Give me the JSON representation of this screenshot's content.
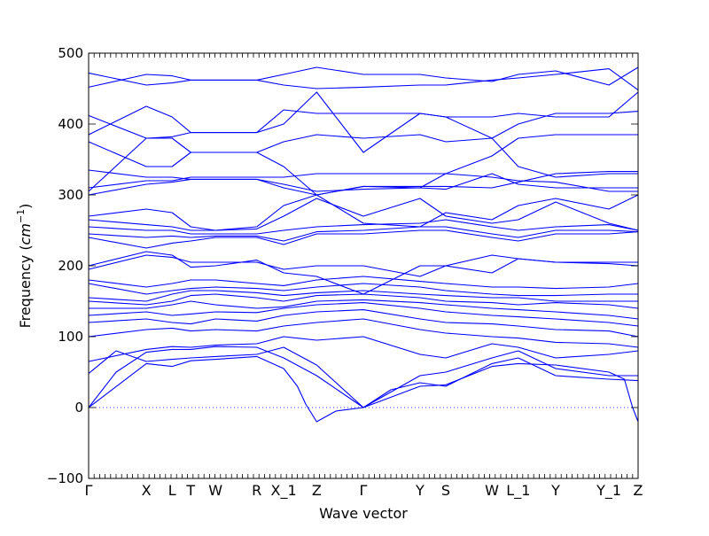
{
  "chart_data": {
    "type": "line",
    "title": "",
    "xlabel": "Wave vector",
    "ylabel": "Frequency (cm⁻¹)",
    "ylabel_prefix": "Frequency (",
    "ylabel_unit": "cm",
    "ylabel_exp": "−1",
    "ylabel_suffix": ")",
    "ylim": [
      -100,
      500
    ],
    "y_ticks": [
      -100,
      0,
      100,
      200,
      300,
      400,
      500
    ],
    "xlim": [
      0,
      1
    ],
    "x_tick_labels": [
      "Γ",
      "X",
      "L",
      "T",
      "W",
      "R",
      "X_1",
      "Z",
      "Γ",
      "Y",
      "S",
      "W",
      "L_1",
      "Y",
      "Y_1",
      "Z"
    ],
    "x_tick_positions": [
      0.0,
      0.105,
      0.152,
      0.186,
      0.231,
      0.306,
      0.355,
      0.415,
      0.5,
      0.603,
      0.65,
      0.734,
      0.782,
      0.85,
      0.947,
      1.0
    ],
    "zero_line": 0,
    "grid": false,
    "line_color": "#0000ff",
    "series": [
      {
        "x": [
          0.0,
          0.105,
          0.152,
          0.186,
          0.231,
          0.306,
          0.355,
          0.38,
          0.395,
          0.415,
          0.45,
          0.5,
          0.603,
          0.65,
          0.734,
          0.782,
          0.85,
          0.947,
          0.975,
          0.99,
          1.0
        ],
        "y": [
          0,
          62,
          58,
          66,
          68,
          72,
          55,
          30,
          5,
          -20,
          -5,
          0,
          30,
          32,
          58,
          62,
          60,
          50,
          40,
          0,
          -20
        ]
      },
      {
        "x": [
          0.0,
          0.05,
          0.105,
          0.152,
          0.186,
          0.231,
          0.306,
          0.355,
          0.415,
          0.5,
          0.55,
          0.603,
          0.65,
          0.734,
          0.782,
          0.85,
          0.947,
          1.0
        ],
        "y": [
          0,
          50,
          78,
          82,
          82,
          86,
          85,
          70,
          45,
          0,
          25,
          35,
          30,
          62,
          70,
          45,
          40,
          38
        ]
      },
      {
        "x": [
          0.0,
          0.05,
          0.105,
          0.152,
          0.186,
          0.231,
          0.306,
          0.355,
          0.415,
          0.5,
          0.603,
          0.65,
          0.734,
          0.782,
          0.85,
          0.947,
          1.0
        ],
        "y": [
          48,
          80,
          65,
          68,
          70,
          72,
          75,
          85,
          60,
          0,
          45,
          50,
          70,
          80,
          55,
          45,
          45
        ]
      },
      {
        "x": [
          0.0,
          0.105,
          0.152,
          0.186,
          0.231,
          0.306,
          0.355,
          0.415,
          0.5,
          0.603,
          0.65,
          0.734,
          0.782,
          0.85,
          0.947,
          1.0
        ],
        "y": [
          65,
          82,
          86,
          85,
          88,
          90,
          100,
          95,
          100,
          75,
          70,
          90,
          85,
          70,
          75,
          80
        ]
      },
      {
        "x": [
          0.0,
          0.105,
          0.152,
          0.186,
          0.231,
          0.306,
          0.355,
          0.415,
          0.5,
          0.603,
          0.65,
          0.734,
          0.782,
          0.85,
          0.947,
          1.0
        ],
        "y": [
          100,
          110,
          112,
          108,
          110,
          108,
          115,
          120,
          125,
          110,
          105,
          100,
          98,
          92,
          90,
          85
        ]
      },
      {
        "x": [
          0.0,
          0.105,
          0.152,
          0.186,
          0.231,
          0.306,
          0.355,
          0.415,
          0.5,
          0.603,
          0.65,
          0.734,
          0.782,
          0.85,
          0.947,
          1.0
        ],
        "y": [
          120,
          125,
          120,
          118,
          125,
          122,
          130,
          135,
          138,
          125,
          120,
          118,
          115,
          110,
          108,
          100
        ]
      },
      {
        "x": [
          0.0,
          0.105,
          0.152,
          0.186,
          0.231,
          0.306,
          0.355,
          0.415,
          0.5,
          0.603,
          0.65,
          0.734,
          0.782,
          0.85,
          0.947,
          1.0
        ],
        "y": [
          130,
          135,
          130,
          132,
          135,
          134,
          140,
          145,
          148,
          140,
          135,
          130,
          128,
          125,
          120,
          115
        ]
      },
      {
        "x": [
          0.0,
          0.105,
          0.152,
          0.186,
          0.231,
          0.306,
          0.355,
          0.415,
          0.5,
          0.603,
          0.65,
          0.734,
          0.782,
          0.85,
          0.947,
          1.0
        ],
        "y": [
          140,
          140,
          145,
          150,
          145,
          140,
          142,
          150,
          152,
          148,
          145,
          140,
          138,
          135,
          130,
          125
        ]
      },
      {
        "x": [
          0.0,
          0.105,
          0.152,
          0.186,
          0.231,
          0.306,
          0.355,
          0.415,
          0.5,
          0.603,
          0.65,
          0.734,
          0.782,
          0.85,
          0.947,
          1.0
        ],
        "y": [
          150,
          145,
          150,
          158,
          160,
          155,
          150,
          158,
          160,
          155,
          150,
          148,
          145,
          148,
          145,
          140
        ]
      },
      {
        "x": [
          0.0,
          0.105,
          0.152,
          0.186,
          0.231,
          0.306,
          0.355,
          0.415,
          0.5,
          0.603,
          0.65,
          0.734,
          0.782,
          0.85,
          0.947,
          1.0
        ],
        "y": [
          155,
          150,
          160,
          165,
          165,
          162,
          158,
          162,
          165,
          160,
          158,
          155,
          155,
          150,
          150,
          150
        ]
      },
      {
        "x": [
          0.0,
          0.105,
          0.152,
          0.186,
          0.231,
          0.306,
          0.355,
          0.415,
          0.5,
          0.603,
          0.65,
          0.734,
          0.782,
          0.85,
          0.947,
          1.0
        ],
        "y": [
          175,
          160,
          165,
          168,
          170,
          168,
          165,
          170,
          175,
          170,
          165,
          160,
          158,
          158,
          160,
          160
        ]
      },
      {
        "x": [
          0.0,
          0.105,
          0.152,
          0.186,
          0.231,
          0.306,
          0.355,
          0.415,
          0.5,
          0.603,
          0.65,
          0.734,
          0.782,
          0.85,
          0.947,
          1.0
        ],
        "y": [
          180,
          170,
          175,
          180,
          180,
          175,
          172,
          180,
          185,
          178,
          175,
          170,
          170,
          168,
          170,
          175
        ]
      },
      {
        "x": [
          0.0,
          0.105,
          0.152,
          0.186,
          0.231,
          0.306,
          0.355,
          0.415,
          0.5,
          0.603,
          0.65,
          0.734,
          0.782,
          0.85,
          0.947,
          1.0
        ],
        "y": [
          195,
          215,
          212,
          205,
          205,
          205,
          195,
          200,
          200,
          185,
          200,
          215,
          210,
          205,
          203,
          200
        ]
      },
      {
        "x": [
          0.0,
          0.105,
          0.152,
          0.186,
          0.231,
          0.306,
          0.355,
          0.415,
          0.5,
          0.603,
          0.65,
          0.734,
          0.782,
          0.85,
          0.947,
          1.0
        ],
        "y": [
          200,
          220,
          215,
          198,
          200,
          208,
          190,
          185,
          160,
          200,
          200,
          190,
          210,
          205,
          205,
          205
        ]
      },
      {
        "x": [
          0.0,
          0.105,
          0.152,
          0.186,
          0.231,
          0.306,
          0.355,
          0.415,
          0.5,
          0.603,
          0.65,
          0.734,
          0.782,
          0.85,
          0.947,
          1.0
        ],
        "y": [
          240,
          225,
          232,
          235,
          240,
          240,
          230,
          245,
          245,
          250,
          250,
          240,
          235,
          245,
          245,
          248
        ]
      },
      {
        "x": [
          0.0,
          0.105,
          0.152,
          0.186,
          0.231,
          0.306,
          0.355,
          0.415,
          0.5,
          0.603,
          0.65,
          0.734,
          0.782,
          0.85,
          0.947,
          1.0
        ],
        "y": [
          245,
          240,
          242,
          240,
          242,
          242,
          235,
          248,
          250,
          255,
          255,
          245,
          240,
          250,
          250,
          248
        ]
      },
      {
        "x": [
          0.0,
          0.105,
          0.152,
          0.186,
          0.231,
          0.306,
          0.355,
          0.415,
          0.5,
          0.603,
          0.65,
          0.734,
          0.782,
          0.85,
          0.947,
          1.0
        ],
        "y": [
          255,
          250,
          250,
          245,
          245,
          245,
          250,
          255,
          258,
          260,
          265,
          255,
          250,
          255,
          258,
          250
        ]
      },
      {
        "x": [
          0.0,
          0.105,
          0.152,
          0.186,
          0.231,
          0.306,
          0.355,
          0.415,
          0.5,
          0.603,
          0.65,
          0.734,
          0.782,
          0.85,
          0.947,
          1.0
        ],
        "y": [
          265,
          258,
          255,
          250,
          250,
          252,
          270,
          295,
          270,
          295,
          270,
          260,
          265,
          290,
          260,
          250
        ]
      },
      {
        "x": [
          0.0,
          0.105,
          0.152,
          0.186,
          0.231,
          0.306,
          0.355,
          0.415,
          0.5,
          0.603,
          0.65,
          0.734,
          0.782,
          0.85,
          0.947,
          1.0
        ],
        "y": [
          270,
          280,
          275,
          255,
          250,
          255,
          285,
          300,
          260,
          255,
          275,
          265,
          285,
          295,
          280,
          300
        ]
      },
      {
        "x": [
          0.0,
          0.105,
          0.152,
          0.186,
          0.231,
          0.306,
          0.355,
          0.415,
          0.5,
          0.603,
          0.65,
          0.734,
          0.782,
          0.85,
          0.947,
          1.0
        ],
        "y": [
          300,
          315,
          318,
          322,
          322,
          322,
          315,
          305,
          308,
          310,
          308,
          330,
          315,
          310,
          310,
          310
        ]
      },
      {
        "x": [
          0.0,
          0.105,
          0.152,
          0.186,
          0.231,
          0.306,
          0.355,
          0.415,
          0.5,
          0.603,
          0.65,
          0.734,
          0.782,
          0.85,
          0.947,
          1.0
        ],
        "y": [
          310,
          320,
          320,
          325,
          325,
          325,
          325,
          330,
          330,
          330,
          330,
          325,
          320,
          318,
          305,
          305
        ]
      },
      {
        "x": [
          0.0,
          0.105,
          0.152,
          0.186,
          0.231,
          0.306,
          0.355,
          0.415,
          0.5,
          0.603,
          0.65,
          0.734,
          0.782,
          0.85,
          0.947,
          1.0
        ],
        "y": [
          335,
          325,
          325,
          322,
          322,
          322,
          310,
          300,
          312,
          312,
          312,
          310,
          318,
          330,
          333,
          333
        ]
      },
      {
        "x": [
          0.0,
          0.105,
          0.152,
          0.186,
          0.231,
          0.306,
          0.355,
          0.415,
          0.5,
          0.603,
          0.65,
          0.734,
          0.782,
          0.85,
          0.947,
          1.0
        ],
        "y": [
          305,
          380,
          380,
          360,
          360,
          360,
          340,
          300,
          312,
          310,
          330,
          355,
          380,
          385,
          385,
          385
        ]
      },
      {
        "x": [
          0.0,
          0.105,
          0.152,
          0.186,
          0.231,
          0.306,
          0.355,
          0.415,
          0.5,
          0.603,
          0.65,
          0.734,
          0.782,
          0.85,
          0.947,
          1.0
        ],
        "y": [
          375,
          340,
          340,
          360,
          360,
          360,
          375,
          385,
          380,
          385,
          375,
          380,
          340,
          325,
          330,
          330
        ]
      },
      {
        "x": [
          0.0,
          0.105,
          0.152,
          0.186,
          0.231,
          0.306,
          0.355,
          0.415,
          0.5,
          0.603,
          0.65,
          0.734,
          0.782,
          0.85,
          0.947,
          1.0
        ],
        "y": [
          412,
          380,
          382,
          388,
          388,
          388,
          400,
          445,
          360,
          415,
          410,
          380,
          400,
          415,
          415,
          418
        ]
      },
      {
        "x": [
          0.0,
          0.105,
          0.152,
          0.186,
          0.231,
          0.306,
          0.355,
          0.415,
          0.5,
          0.603,
          0.65,
          0.734,
          0.782,
          0.85,
          0.947,
          1.0
        ],
        "y": [
          385,
          425,
          410,
          388,
          388,
          388,
          420,
          415,
          415,
          415,
          410,
          410,
          415,
          410,
          410,
          445
        ]
      },
      {
        "x": [
          0.0,
          0.105,
          0.152,
          0.186,
          0.231,
          0.306,
          0.355,
          0.415,
          0.5,
          0.603,
          0.65,
          0.734,
          0.782,
          0.85,
          0.947,
          1.0
        ],
        "y": [
          472,
          455,
          458,
          462,
          462,
          462,
          470,
          480,
          470,
          470,
          465,
          460,
          470,
          475,
          455,
          480
        ]
      },
      {
        "x": [
          0.0,
          0.105,
          0.152,
          0.186,
          0.231,
          0.306,
          0.355,
          0.415,
          0.5,
          0.603,
          0.65,
          0.734,
          0.782,
          0.85,
          0.947,
          1.0
        ],
        "y": [
          452,
          470,
          468,
          462,
          462,
          462,
          455,
          450,
          452,
          455,
          455,
          462,
          465,
          470,
          478,
          448
        ]
      }
    ]
  }
}
